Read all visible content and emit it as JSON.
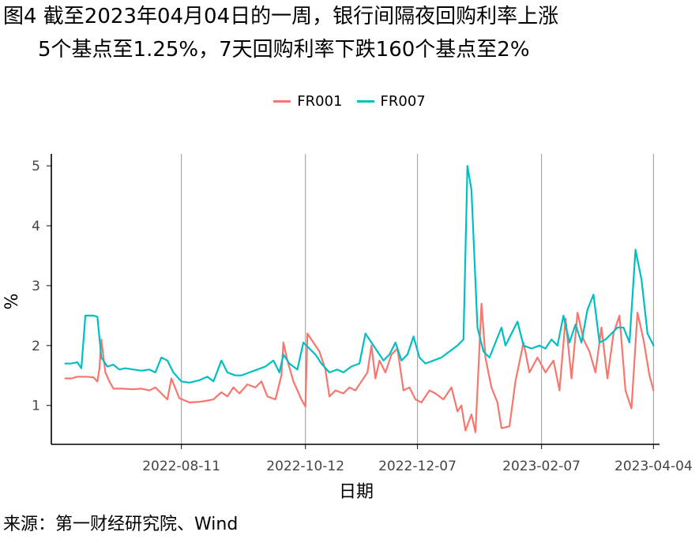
{
  "title_line1": "图4  截至2023年04月04日的一周，银行间隔夜回购利率上涨",
  "title_line2": "5个基点至1.25%，7天回购利率下跌160个基点至2%",
  "source": "来源：第一财经研究院、Wind",
  "chart_data": {
    "type": "line",
    "title": "图4  截至2023年04月04日的一周，银行间隔夜回购利率上涨5个基点至1.25%，7天回购利率下跌160个基点至2%",
    "xlabel": "日期",
    "ylabel": "%",
    "ylim": [
      0.35,
      5.2
    ],
    "xlim": [
      "2022-06-07",
      "2023-04-07"
    ],
    "x_ticks": [
      "2022-08-11",
      "2022-10-12",
      "2022-12-07",
      "2023-02-07",
      "2023-04-04"
    ],
    "y_ticks": [
      1,
      2,
      3,
      4,
      5
    ],
    "grid": "vertical major",
    "legend_position": "top",
    "series": [
      {
        "name": "FR001",
        "color": "#F8766D",
        "points": [
          [
            "2022-06-14",
            1.45
          ],
          [
            "2022-06-17",
            1.45
          ],
          [
            "2022-06-20",
            1.48
          ],
          [
            "2022-06-24",
            1.48
          ],
          [
            "2022-06-28",
            1.47
          ],
          [
            "2022-06-30",
            1.4
          ],
          [
            "2022-07-01",
            1.6
          ],
          [
            "2022-07-02",
            2.1
          ],
          [
            "2022-07-04",
            1.55
          ],
          [
            "2022-07-06",
            1.4
          ],
          [
            "2022-07-08",
            1.28
          ],
          [
            "2022-07-12",
            1.28
          ],
          [
            "2022-07-18",
            1.27
          ],
          [
            "2022-07-22",
            1.28
          ],
          [
            "2022-07-26",
            1.25
          ],
          [
            "2022-07-29",
            1.3
          ],
          [
            "2022-08-01",
            1.2
          ],
          [
            "2022-08-04",
            1.1
          ],
          [
            "2022-08-06",
            1.45
          ],
          [
            "2022-08-10",
            1.12
          ],
          [
            "2022-08-15",
            1.05
          ],
          [
            "2022-08-20",
            1.06
          ],
          [
            "2022-08-24",
            1.08
          ],
          [
            "2022-08-27",
            1.1
          ],
          [
            "2022-08-31",
            1.22
          ],
          [
            "2022-09-03",
            1.15
          ],
          [
            "2022-09-06",
            1.3
          ],
          [
            "2022-09-09",
            1.2
          ],
          [
            "2022-09-13",
            1.35
          ],
          [
            "2022-09-17",
            1.3
          ],
          [
            "2022-09-20",
            1.4
          ],
          [
            "2022-09-23",
            1.15
          ],
          [
            "2022-09-27",
            1.1
          ],
          [
            "2022-09-30",
            1.5
          ],
          [
            "2022-10-01",
            2.05
          ],
          [
            "2022-10-03",
            1.75
          ],
          [
            "2022-10-06",
            1.4
          ],
          [
            "2022-10-10",
            1.1
          ],
          [
            "2022-10-12",
            0.98
          ],
          [
            "2022-10-13",
            2.2
          ],
          [
            "2022-10-16",
            2.05
          ],
          [
            "2022-10-19",
            1.9
          ],
          [
            "2022-10-22",
            1.6
          ],
          [
            "2022-10-24",
            1.15
          ],
          [
            "2022-10-27",
            1.25
          ],
          [
            "2022-10-31",
            1.2
          ],
          [
            "2022-11-03",
            1.3
          ],
          [
            "2022-11-06",
            1.25
          ],
          [
            "2022-11-09",
            1.4
          ],
          [
            "2022-11-12",
            1.55
          ],
          [
            "2022-11-14",
            2.0
          ],
          [
            "2022-11-16",
            1.45
          ],
          [
            "2022-11-18",
            1.75
          ],
          [
            "2022-11-21",
            1.55
          ],
          [
            "2022-11-24",
            1.85
          ],
          [
            "2022-11-27",
            1.95
          ],
          [
            "2022-11-30",
            1.25
          ],
          [
            "2022-12-03",
            1.3
          ],
          [
            "2022-12-06",
            1.1
          ],
          [
            "2022-12-09",
            1.05
          ],
          [
            "2022-12-13",
            1.25
          ],
          [
            "2022-12-16",
            1.2
          ],
          [
            "2022-12-20",
            1.1
          ],
          [
            "2022-12-24",
            1.3
          ],
          [
            "2022-12-27",
            0.9
          ],
          [
            "2022-12-29",
            1.0
          ],
          [
            "2022-12-31",
            0.58
          ],
          [
            "2023-01-03",
            0.85
          ],
          [
            "2023-01-05",
            0.55
          ],
          [
            "2023-01-08",
            2.7
          ],
          [
            "2023-01-10",
            1.8
          ],
          [
            "2023-01-13",
            1.3
          ],
          [
            "2023-01-16",
            1.05
          ],
          [
            "2023-01-18",
            0.62
          ],
          [
            "2023-01-22",
            0.65
          ],
          [
            "2023-01-25",
            1.4
          ],
          [
            "2023-01-29",
            2.05
          ],
          [
            "2023-02-01",
            1.55
          ],
          [
            "2023-02-05",
            1.8
          ],
          [
            "2023-02-09",
            1.55
          ],
          [
            "2023-02-13",
            1.75
          ],
          [
            "2023-02-16",
            1.25
          ],
          [
            "2023-02-19",
            2.45
          ],
          [
            "2023-02-22",
            1.45
          ],
          [
            "2023-02-25",
            2.55
          ],
          [
            "2023-02-28",
            2.1
          ],
          [
            "2023-03-03",
            1.9
          ],
          [
            "2023-03-06",
            1.55
          ],
          [
            "2023-03-09",
            2.3
          ],
          [
            "2023-03-12",
            1.45
          ],
          [
            "2023-03-15",
            2.2
          ],
          [
            "2023-03-18",
            2.5
          ],
          [
            "2023-03-21",
            1.25
          ],
          [
            "2023-03-24",
            0.95
          ],
          [
            "2023-03-27",
            2.55
          ],
          [
            "2023-03-30",
            2.1
          ],
          [
            "2023-04-02",
            1.5
          ],
          [
            "2023-04-04",
            1.25
          ]
        ]
      },
      {
        "name": "FR007",
        "color": "#00BFC4",
        "points": [
          [
            "2022-06-14",
            1.7
          ],
          [
            "2022-06-17",
            1.7
          ],
          [
            "2022-06-20",
            1.72
          ],
          [
            "2022-06-22",
            1.62
          ],
          [
            "2022-06-24",
            2.5
          ],
          [
            "2022-06-28",
            2.5
          ],
          [
            "2022-06-30",
            2.48
          ],
          [
            "2022-07-02",
            1.8
          ],
          [
            "2022-07-05",
            1.65
          ],
          [
            "2022-07-08",
            1.68
          ],
          [
            "2022-07-11",
            1.6
          ],
          [
            "2022-07-14",
            1.62
          ],
          [
            "2022-07-18",
            1.6
          ],
          [
            "2022-07-22",
            1.58
          ],
          [
            "2022-07-26",
            1.6
          ],
          [
            "2022-07-29",
            1.55
          ],
          [
            "2022-08-01",
            1.8
          ],
          [
            "2022-08-04",
            1.75
          ],
          [
            "2022-08-07",
            1.55
          ],
          [
            "2022-08-11",
            1.4
          ],
          [
            "2022-08-15",
            1.38
          ],
          [
            "2022-08-20",
            1.42
          ],
          [
            "2022-08-24",
            1.48
          ],
          [
            "2022-08-27",
            1.4
          ],
          [
            "2022-08-31",
            1.75
          ],
          [
            "2022-09-03",
            1.55
          ],
          [
            "2022-09-07",
            1.5
          ],
          [
            "2022-09-10",
            1.5
          ],
          [
            "2022-09-14",
            1.55
          ],
          [
            "2022-09-18",
            1.6
          ],
          [
            "2022-09-22",
            1.65
          ],
          [
            "2022-09-26",
            1.75
          ],
          [
            "2022-09-29",
            1.55
          ],
          [
            "2022-10-01",
            1.85
          ],
          [
            "2022-10-04",
            1.7
          ],
          [
            "2022-10-08",
            1.6
          ],
          [
            "2022-10-11",
            2.05
          ],
          [
            "2022-10-14",
            1.95
          ],
          [
            "2022-10-17",
            1.85
          ],
          [
            "2022-10-20",
            1.7
          ],
          [
            "2022-10-24",
            1.55
          ],
          [
            "2022-10-28",
            1.6
          ],
          [
            "2022-10-31",
            1.55
          ],
          [
            "2022-11-04",
            1.65
          ],
          [
            "2022-11-08",
            1.7
          ],
          [
            "2022-11-11",
            2.2
          ],
          [
            "2022-11-14",
            2.05
          ],
          [
            "2022-11-17",
            1.9
          ],
          [
            "2022-11-20",
            1.75
          ],
          [
            "2022-11-23",
            1.85
          ],
          [
            "2022-11-26",
            2.05
          ],
          [
            "2022-11-29",
            1.75
          ],
          [
            "2022-12-02",
            1.85
          ],
          [
            "2022-12-05",
            2.15
          ],
          [
            "2022-12-08",
            1.8
          ],
          [
            "2022-12-11",
            1.7
          ],
          [
            "2022-12-15",
            1.75
          ],
          [
            "2022-12-19",
            1.8
          ],
          [
            "2022-12-23",
            1.9
          ],
          [
            "2022-12-27",
            2.0
          ],
          [
            "2022-12-30",
            2.1
          ],
          [
            "2023-01-01",
            5.0
          ],
          [
            "2023-01-03",
            4.6
          ],
          [
            "2023-01-06",
            2.3
          ],
          [
            "2023-01-09",
            1.9
          ],
          [
            "2023-01-12",
            1.8
          ],
          [
            "2023-01-15",
            2.05
          ],
          [
            "2023-01-18",
            2.3
          ],
          [
            "2023-01-20",
            2.0
          ],
          [
            "2023-01-23",
            2.2
          ],
          [
            "2023-01-26",
            2.4
          ],
          [
            "2023-01-29",
            2.0
          ],
          [
            "2023-02-02",
            1.95
          ],
          [
            "2023-02-06",
            2.0
          ],
          [
            "2023-02-09",
            1.95
          ],
          [
            "2023-02-12",
            2.1
          ],
          [
            "2023-02-15",
            2.0
          ],
          [
            "2023-02-18",
            2.5
          ],
          [
            "2023-02-21",
            2.05
          ],
          [
            "2023-02-24",
            2.35
          ],
          [
            "2023-02-27",
            2.05
          ],
          [
            "2023-03-02",
            2.6
          ],
          [
            "2023-03-05",
            2.85
          ],
          [
            "2023-03-08",
            2.05
          ],
          [
            "2023-03-11",
            2.1
          ],
          [
            "2023-03-14",
            2.2
          ],
          [
            "2023-03-17",
            2.3
          ],
          [
            "2023-03-20",
            2.3
          ],
          [
            "2023-03-23",
            2.05
          ],
          [
            "2023-03-26",
            3.6
          ],
          [
            "2023-03-29",
            3.1
          ],
          [
            "2023-04-01",
            2.2
          ],
          [
            "2023-04-04",
            2.0
          ]
        ]
      }
    ]
  }
}
